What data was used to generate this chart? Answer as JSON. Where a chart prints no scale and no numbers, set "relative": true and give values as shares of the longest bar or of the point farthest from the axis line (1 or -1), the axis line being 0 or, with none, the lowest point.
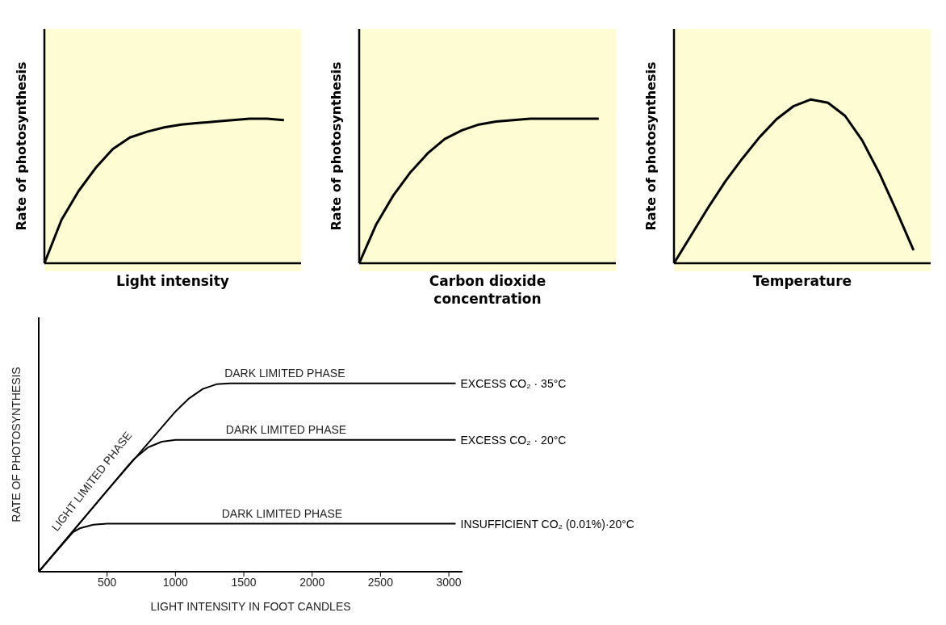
{
  "chart_data": [
    {
      "type": "line",
      "relative": true,
      "xlabel": "Light intensity",
      "ylabel": "Rate of photosynthesis",
      "categories": [
        null,
        null,
        null,
        null,
        null,
        null,
        null,
        null,
        null,
        null,
        null,
        null,
        null,
        null,
        null,
        null
      ],
      "tick_labels": false,
      "marker": "none",
      "series": [
        {
          "color": "#000000",
          "values": [
            0,
            0.3,
            0.5,
            0.66,
            0.79,
            0.87,
            0.91,
            0.94,
            0.96,
            0.97,
            0.98,
            0.99,
            1,
            1,
            0.99,
            null
          ]
        }
      ]
    },
    {
      "type": "line",
      "relative": true,
      "xlabel": "Carbon dioxide concentration",
      "ylabel": "Rate of photosynthesis",
      "categories": [
        null,
        null,
        null,
        null,
        null,
        null,
        null,
        null,
        null,
        null,
        null,
        null,
        null,
        null,
        null,
        null
      ],
      "tick_labels": false,
      "marker": "none",
      "series": [
        {
          "color": "#000000",
          "values": [
            0,
            0.27,
            0.47,
            0.63,
            0.76,
            0.86,
            0.92,
            0.96,
            0.98,
            0.99,
            1,
            1,
            1,
            1,
            1,
            null
          ]
        }
      ]
    },
    {
      "type": "line",
      "relative": true,
      "xlabel": "Temperature",
      "ylabel": "Rate of photosynthesis",
      "categories": [
        null,
        null,
        null,
        null,
        null,
        null,
        null,
        null,
        null,
        null,
        null,
        null,
        null,
        null,
        null,
        null
      ],
      "tick_labels": false,
      "marker": "none",
      "series": [
        {
          "color": "#000000",
          "values": [
            0,
            0.17,
            0.34,
            0.5,
            0.64,
            0.77,
            0.88,
            0.96,
            1,
            0.98,
            0.9,
            0.75,
            0.55,
            0.32,
            0.08,
            null
          ]
        }
      ]
    },
    {
      "type": "line",
      "relative": true,
      "xlabel": "LIGHT INTENSITY IN FOOT CANDLES",
      "ylabel": "RATE OF PHOTOSYNTHESIS",
      "xlim": [
        0,
        3100
      ],
      "xticks": [
        500,
        1000,
        1500,
        2000,
        2500,
        3000
      ],
      "tick_labels": "x",
      "marker": "none",
      "series": [
        {
          "name": "EXCESS CO₂ · 35°C",
          "color": "#000000",
          "x": [
            0,
            500,
            1000,
            1100,
            1200,
            1300,
            1400,
            3050
          ],
          "values": [
            0,
            0.43,
            0.85,
            0.92,
            0.97,
            0.995,
            1,
            1
          ]
        },
        {
          "name": "EXCESS CO₂ · 20°C",
          "color": "#000000",
          "x": [
            0,
            500,
            650,
            700,
            800,
            900,
            1000,
            1100,
            3050
          ],
          "values": [
            0,
            0.43,
            0.56,
            0.6,
            0.66,
            0.69,
            0.7,
            0.7,
            0.7
          ]
        },
        {
          "name": "INSUFFICIENT CO₂ (0.01%)·20°C",
          "color": "#000000",
          "x": [
            0,
            250,
            300,
            400,
            500,
            3050
          ],
          "values": [
            0,
            0.21,
            0.23,
            0.25,
            0.255,
            0.255
          ]
        }
      ],
      "annotations": [
        {
          "text": "LIGHT LIMITED PHASE",
          "x": 480,
          "y": 0.45
        },
        {
          "text": "DARK LIMITED PHASE",
          "x": 1800,
          "y": 1
        },
        {
          "text": "DARK LIMITED PHASE",
          "x": 1810,
          "y": 0.7
        },
        {
          "text": "DARK LIMITED PHASE",
          "x": 1780,
          "y": 0.255
        }
      ]
    }
  ]
}
